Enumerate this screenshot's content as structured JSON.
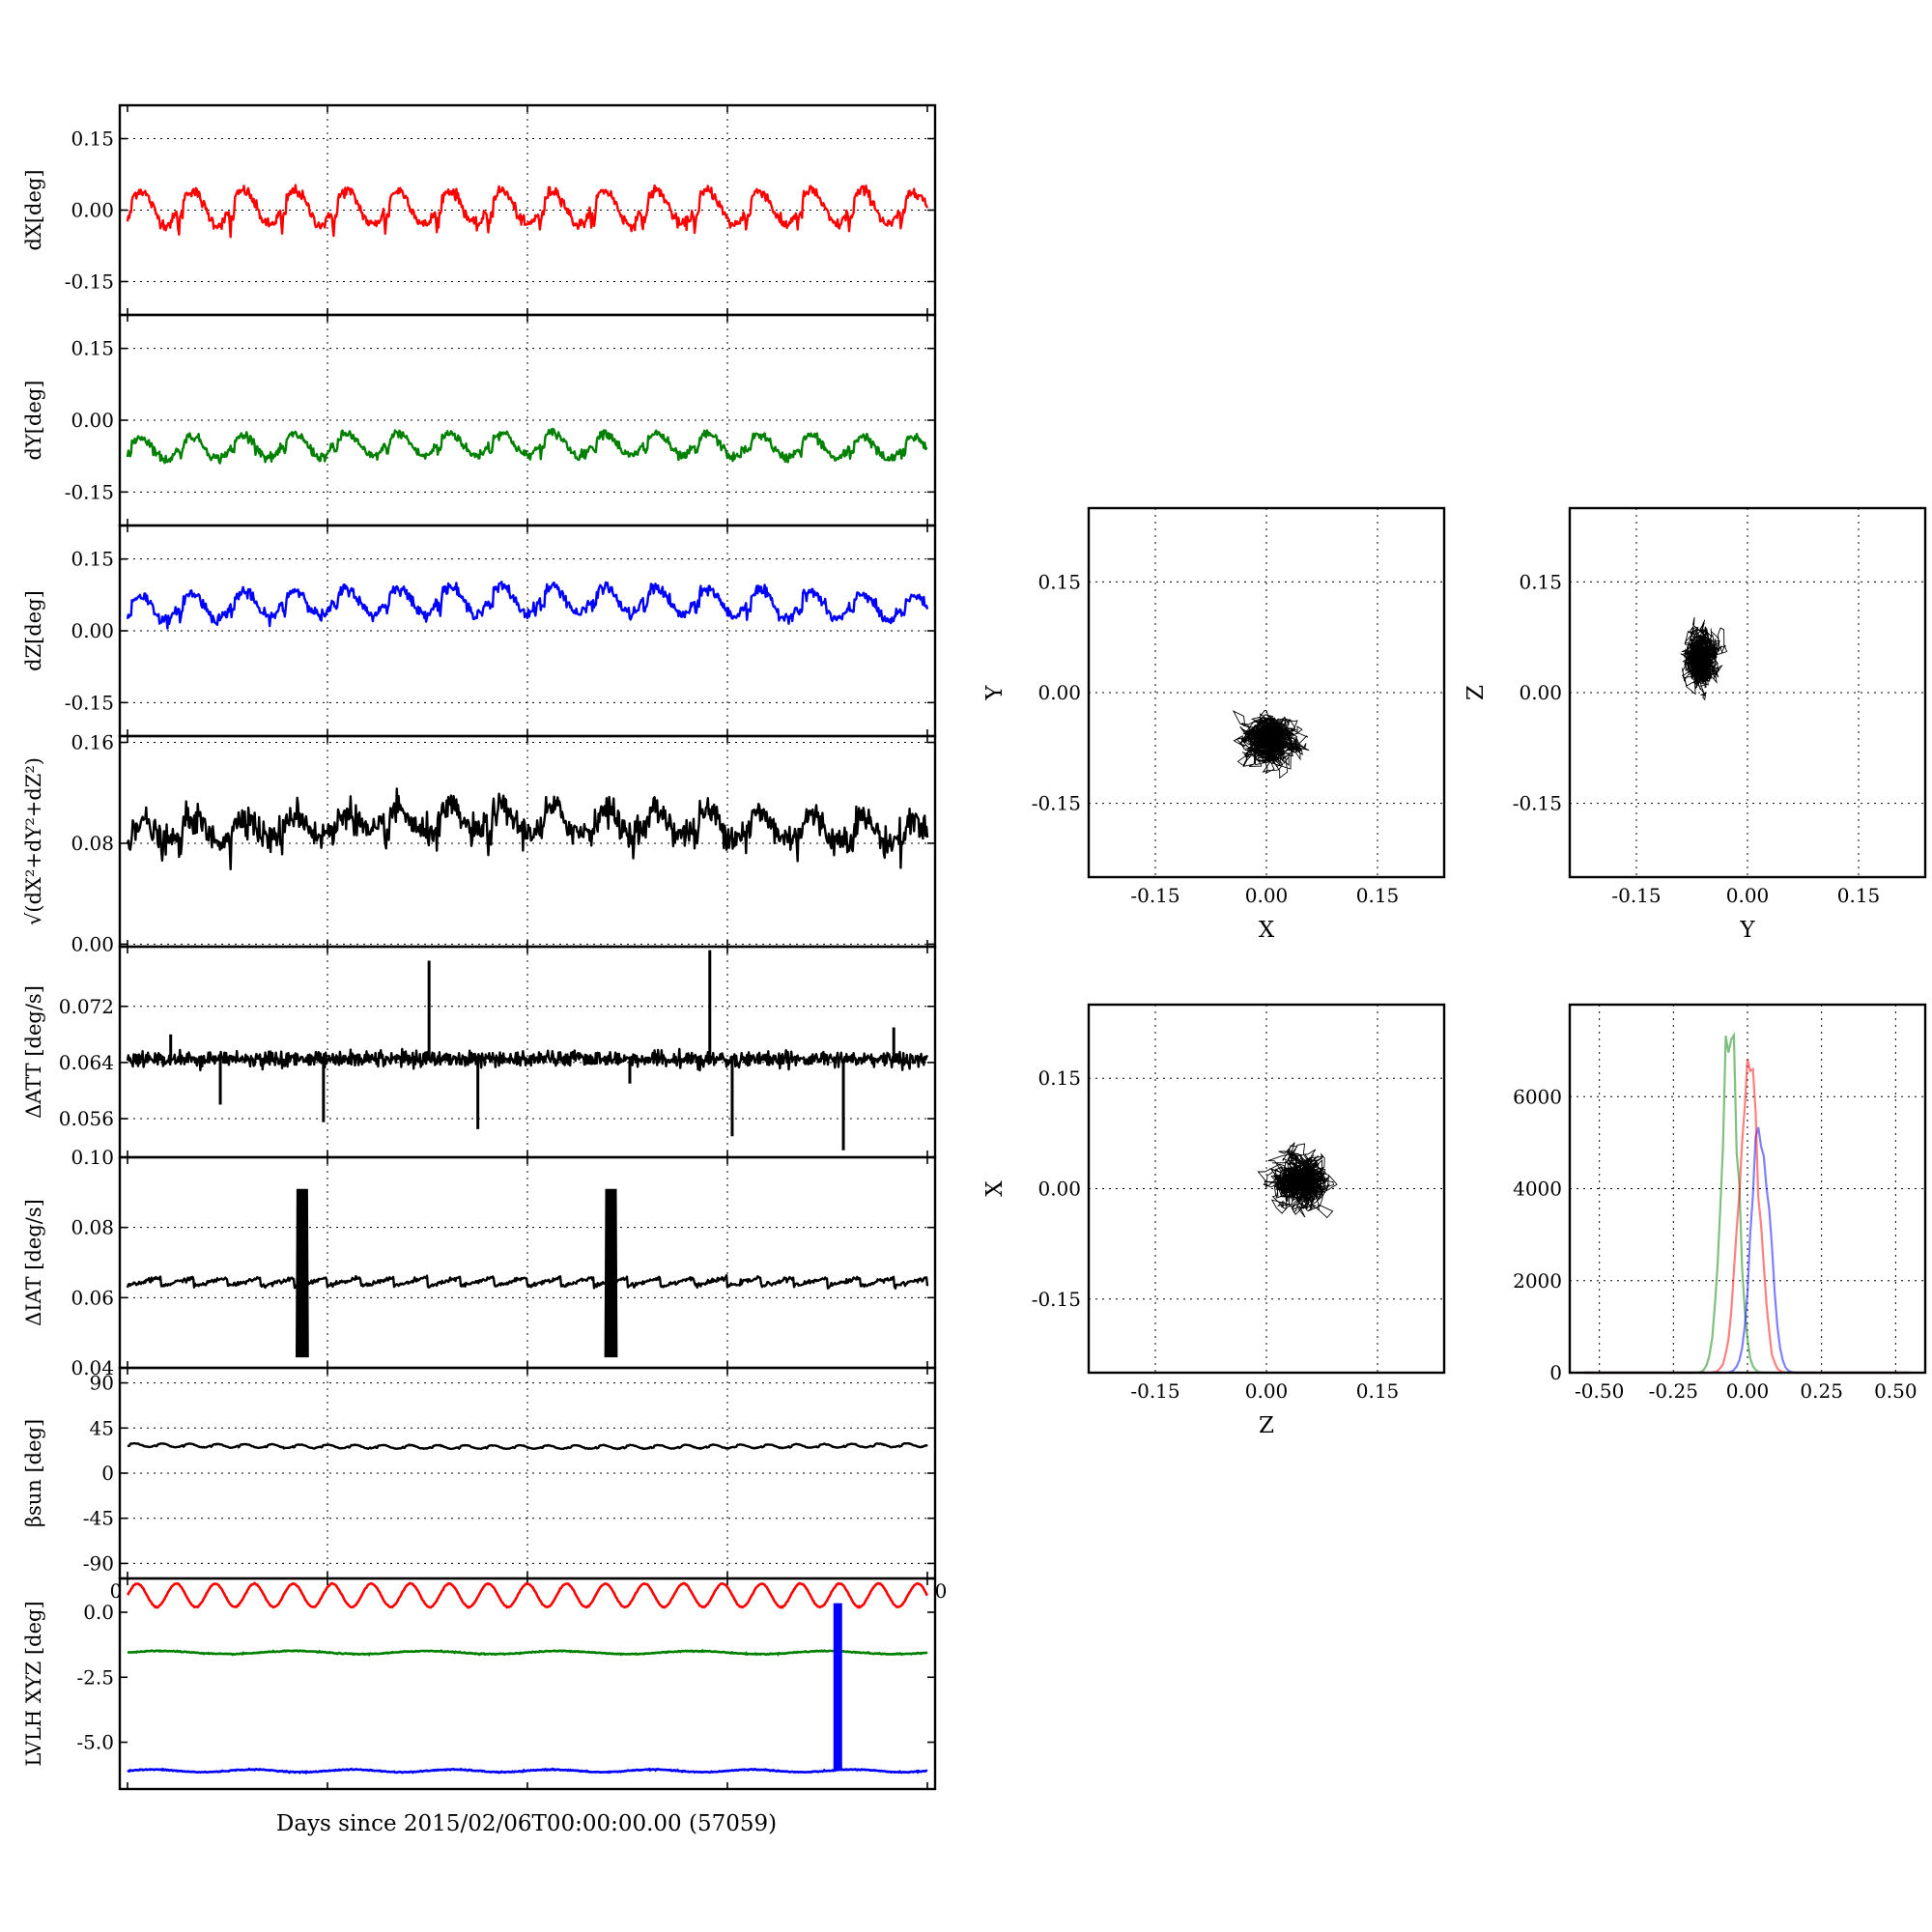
{
  "colors": {
    "red": "#ff0000",
    "green": "#008000",
    "blue": "#0000ff",
    "black": "#000000"
  },
  "figure": {
    "xlabel": "Days since 2015/02/06T00:00:00.00 (57059)"
  },
  "chart_data": [
    {
      "type": "line",
      "id": "dx",
      "ylabel": "dX[deg]",
      "color": "red",
      "ylim": [
        -0.22,
        0.22
      ],
      "yticks": [
        "0.15",
        "0.00",
        "-0.15"
      ],
      "ytick_values": [
        0.15,
        0.0,
        -0.15
      ],
      "grid": true,
      "pattern": {
        "cycles": 15.5,
        "mean": 0.005,
        "amp": 0.045,
        "noise": 0.006,
        "spike_depth": 0.06,
        "trend": 0.0
      }
    },
    {
      "type": "line",
      "id": "dy",
      "ylabel": "dY[deg]",
      "color": "green",
      "ylim": [
        -0.22,
        0.22
      ],
      "yticks": [
        "0.15",
        "0.00",
        "-0.15"
      ],
      "ytick_values": [
        0.15,
        0.0,
        -0.15
      ],
      "grid": true,
      "pattern": {
        "cycles": 15.5,
        "mean": -0.06,
        "amp": 0.03,
        "noise": 0.005,
        "spike_depth": 0.0,
        "trend": 0.01
      }
    },
    {
      "type": "line",
      "id": "dz",
      "ylabel": "dZ[deg]",
      "color": "blue",
      "ylim": [
        -0.22,
        0.22
      ],
      "yticks": [
        "0.15",
        "0.00",
        "-0.15"
      ],
      "ytick_values": [
        0.15,
        0.0,
        -0.15
      ],
      "grid": true,
      "pattern": {
        "cycles": 15.5,
        "mean": 0.045,
        "amp": 0.035,
        "noise": 0.006,
        "spike_depth": 0.0,
        "trend": 0.02
      }
    },
    {
      "type": "line",
      "id": "dr",
      "ylabel": "√(dX²+dY²+dZ²)",
      "color": "black",
      "ylim": [
        -0.002,
        0.165
      ],
      "yticks": [
        "0.16",
        "0.08",
        "0.00"
      ],
      "ytick_values": [
        0.16,
        0.08,
        0.0
      ],
      "grid": true,
      "pattern": {
        "cycles": 15.5,
        "mean": 0.088,
        "amp": 0.012,
        "noise": 0.006,
        "spike_depth": -0.025,
        "trend": 0.01
      }
    },
    {
      "type": "line",
      "id": "datt",
      "ylabel": "ΔATT [deg/s]",
      "color": "black",
      "ylim": [
        0.0505,
        0.0805
      ],
      "yticks": [
        "0.072",
        "0.064",
        "0.056"
      ],
      "ytick_values": [
        0.072,
        0.064,
        0.056
      ],
      "grid": true,
      "pattern": {
        "cycles": 40,
        "mean": 0.0645,
        "amp": 0.0004,
        "noise": 0.0004,
        "spike_depth": 0.0,
        "trend": 0.0
      },
      "spikes": [
        [
          0.054,
          0.068
        ],
        [
          0.116,
          0.058
        ],
        [
          0.245,
          0.0555
        ],
        [
          0.377,
          0.0785
        ],
        [
          0.438,
          0.0545
        ],
        [
          0.628,
          0.061
        ],
        [
          0.756,
          0.0535
        ],
        [
          0.728,
          0.08
        ],
        [
          0.895,
          0.0515
        ],
        [
          0.958,
          0.069
        ]
      ]
    },
    {
      "type": "line",
      "id": "diat",
      "ylabel": "ΔIAT [deg/s]",
      "color": "black",
      "ylim": [
        0.04,
        0.1
      ],
      "yticks": [
        "0.10",
        "0.08",
        "0.06",
        "0.04"
      ],
      "ytick_values": [
        0.1,
        0.08,
        0.06,
        0.04
      ],
      "grid": true,
      "pattern": {
        "cycles": 24,
        "mean": 0.0645,
        "amp": 0.0025,
        "noise": 0.0003,
        "spike_depth": 0.0,
        "trend": 0.0
      },
      "bursts": [
        [
          0.212,
          0.225,
          0.043,
          0.091
        ],
        [
          0.598,
          0.611,
          0.043,
          0.091
        ]
      ]
    },
    {
      "type": "line",
      "id": "beta",
      "ylabel": "βsun [deg]",
      "color": "black",
      "ylim": [
        -105,
        105
      ],
      "yticks": [
        "90",
        "45",
        "0",
        "-45",
        "-90"
      ],
      "ytick_values": [
        90,
        45,
        0,
        -45,
        -90
      ],
      "grid": true,
      "pattern": {
        "cycles": 29,
        "mean": 28,
        "amp": 2.2,
        "noise": 0.2,
        "spike_depth": 0.0,
        "trend": -2.0
      }
    },
    {
      "type": "line",
      "id": "lvlh",
      "ylabel": "LVLH XYZ [deg]",
      "ylim": [
        -6.8,
        1.3
      ],
      "yticks": [
        "0.0",
        "-2.5",
        "-5.0"
      ],
      "ytick_values": [
        0.0,
        -2.5,
        -5.0
      ],
      "grid": false,
      "series": [
        {
          "color": "red",
          "mean": 0.65,
          "amp": 0.45,
          "cycles": 20.5
        },
        {
          "color": "green",
          "mean": -1.55,
          "amp": 0.06,
          "cycles": 6
        },
        {
          "color": "blue",
          "mean": -6.1,
          "amp": 0.05,
          "cycles": 8
        }
      ],
      "bar": {
        "x": 0.888,
        "from": -6.1,
        "to": 0.35,
        "color": "blue"
      },
      "xtick_edge_labels": [
        "0",
        "0"
      ]
    },
    {
      "type": "scatter",
      "id": "xy",
      "xlabel": "X",
      "ylabel": "Y",
      "xlim": [
        -0.24,
        0.24
      ],
      "ylim": [
        -0.25,
        0.25
      ],
      "xticks": [
        "-0.15",
        "0.00",
        "0.15"
      ],
      "yticks": [
        "0.15",
        "0.00",
        "-0.15"
      ],
      "tick_values": [
        -0.15,
        0.0,
        0.15
      ],
      "cloud": {
        "cx": 0.005,
        "cy": -0.065,
        "sx": 0.032,
        "sy": 0.027
      }
    },
    {
      "type": "scatter",
      "id": "yz",
      "xlabel": "Y",
      "ylabel": "Z",
      "xlim": [
        -0.24,
        0.24
      ],
      "ylim": [
        -0.25,
        0.25
      ],
      "xticks": [
        "-0.15",
        "0.00",
        "0.15"
      ],
      "yticks": [
        "0.15",
        "0.00",
        "-0.15"
      ],
      "tick_values": [
        -0.15,
        0.0,
        0.15
      ],
      "cloud": {
        "cx": -0.062,
        "cy": 0.045,
        "sx": 0.02,
        "sy": 0.032
      }
    },
    {
      "type": "scatter",
      "id": "zx",
      "xlabel": "Z",
      "ylabel": "X",
      "xlim": [
        -0.24,
        0.24
      ],
      "ylim": [
        -0.25,
        0.25
      ],
      "xticks": [
        "-0.15",
        "0.00",
        "0.15"
      ],
      "yticks": [
        "0.15",
        "0.00",
        "-0.15"
      ],
      "tick_values": [
        -0.15,
        0.0,
        0.15
      ],
      "cloud": {
        "cx": 0.045,
        "cy": 0.01,
        "sx": 0.03,
        "sy": 0.032
      }
    },
    {
      "type": "histogram",
      "id": "hist",
      "xlim": [
        -0.6,
        0.6
      ],
      "ylim": [
        0,
        8000
      ],
      "xticks": [
        "-0.50",
        "-0.25",
        "0.00",
        "0.25",
        "0.50"
      ],
      "xtick_values": [
        -0.5,
        -0.25,
        0.0,
        0.25,
        0.5
      ],
      "yticks": [
        "6000",
        "4000",
        "2000",
        "0"
      ],
      "ytick_values": [
        6000,
        4000,
        2000,
        0
      ],
      "series": [
        {
          "color": "green",
          "center": -0.06,
          "sigma": 0.028,
          "peak": 7600
        },
        {
          "color": "blue",
          "center": 0.045,
          "sigma": 0.03,
          "peak": 5600
        },
        {
          "color": "red",
          "center": 0.005,
          "sigma": 0.033,
          "peak": 7000
        }
      ]
    }
  ]
}
